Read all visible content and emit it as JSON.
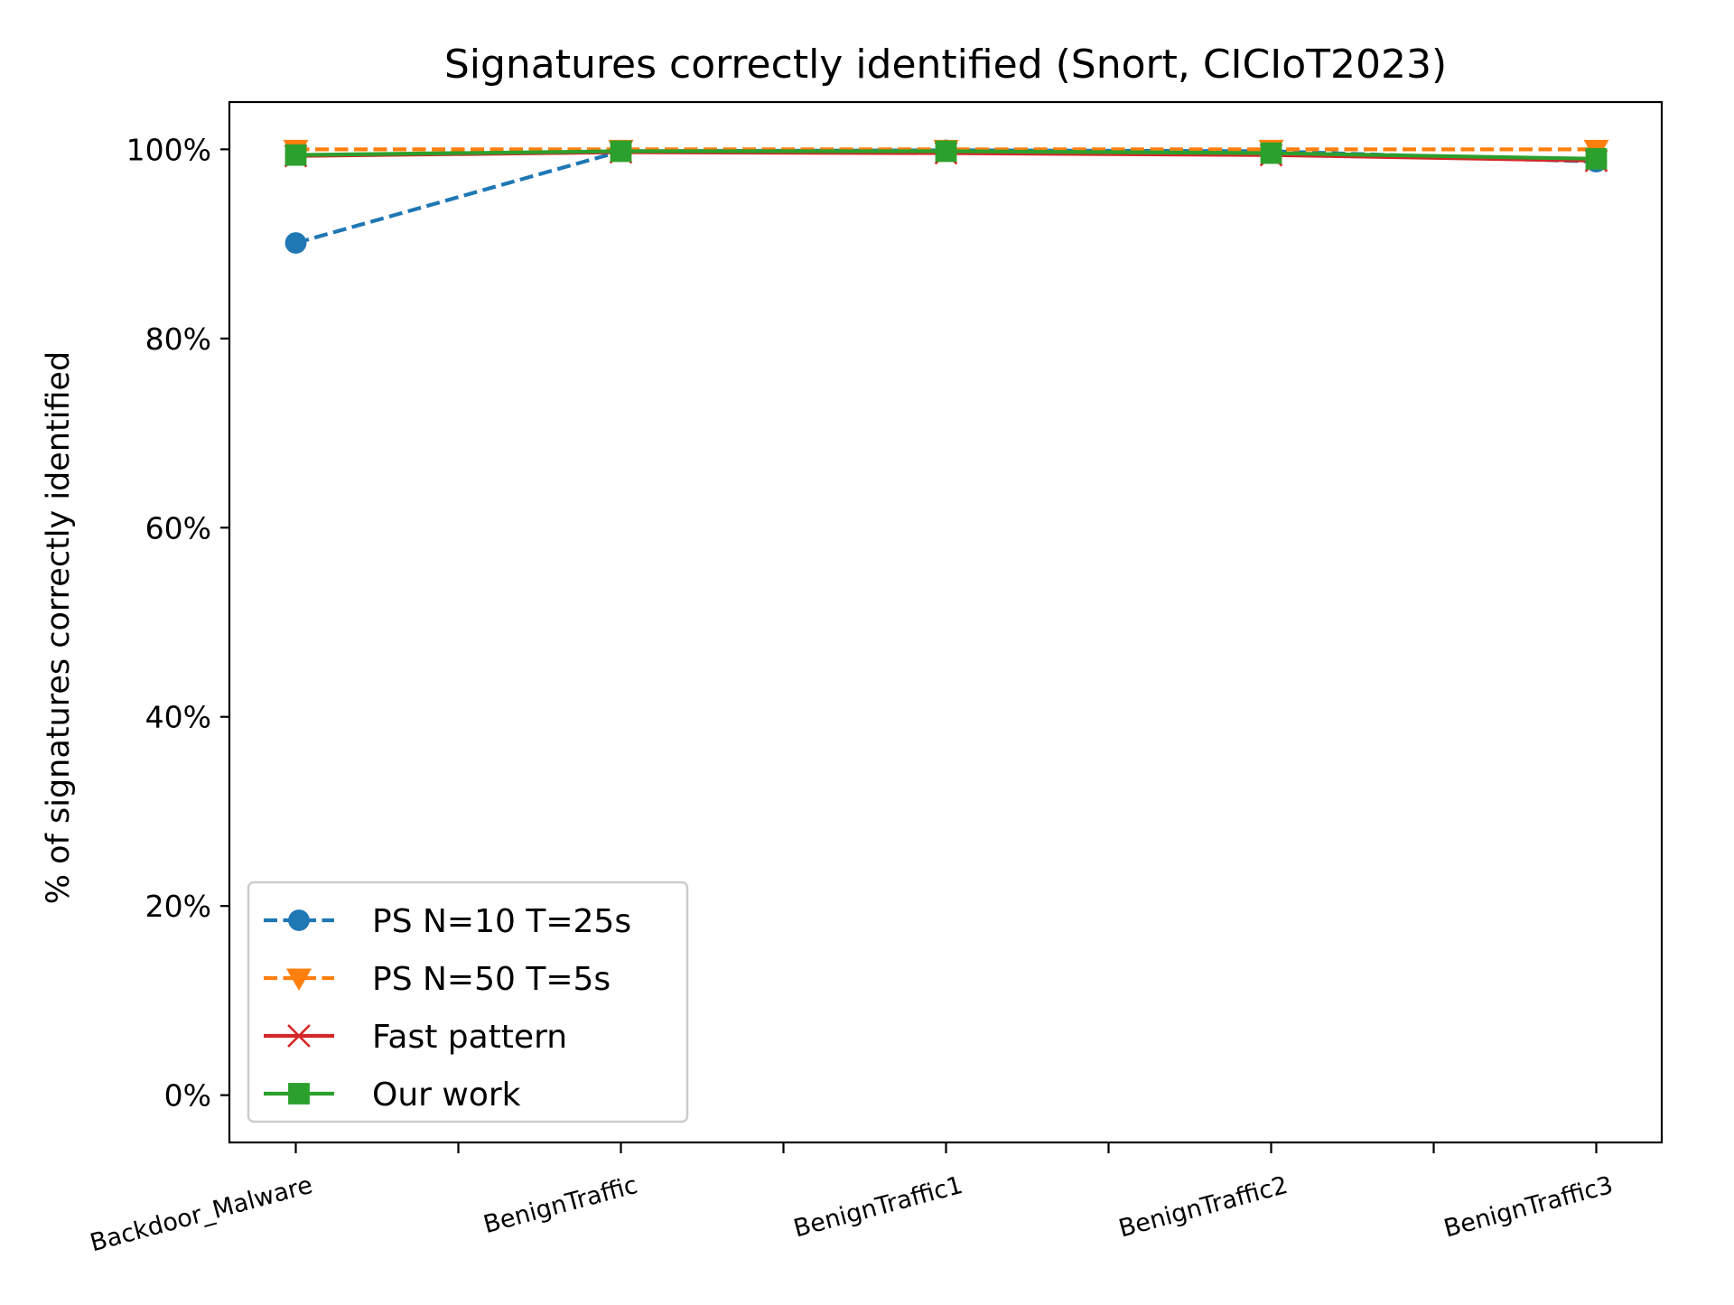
{
  "chart_data": {
    "type": "line",
    "title": "Signatures correctly identified (Snort, CICIoT2023)",
    "xlabel": "",
    "ylabel": "% of signatures correctly identified",
    "categories": [
      "Backdoor_Malware",
      "BenignTraffic",
      "BenignTraffic1",
      "BenignTraffic2",
      "BenignTraffic3"
    ],
    "ylim": [
      -5,
      105
    ],
    "yticks": [
      0,
      20,
      40,
      60,
      80,
      100
    ],
    "ytick_labels": [
      "0%",
      "20%",
      "40%",
      "60%",
      "80%",
      "100%"
    ],
    "grid": false,
    "legend_position": "lower-left",
    "series": [
      {
        "name": "PS N=10 T=25s",
        "values": [
          90.1,
          99.8,
          99.9,
          99.8,
          98.7
        ],
        "color": "#1f77b4",
        "line_style": "dashed",
        "marker": "circle"
      },
      {
        "name": "PS N=50 T=5s",
        "values": [
          100,
          100,
          100,
          100,
          100
        ],
        "color": "#ff7f0e",
        "line_style": "dashed",
        "marker": "triangle-down"
      },
      {
        "name": "Fast pattern",
        "values": [
          99.3,
          99.7,
          99.6,
          99.4,
          98.8
        ],
        "color": "#d62728",
        "line_style": "solid",
        "marker": "x"
      },
      {
        "name": "Our work",
        "values": [
          99.4,
          99.8,
          99.8,
          99.6,
          99.0
        ],
        "color": "#2ca02c",
        "line_style": "solid",
        "marker": "square"
      }
    ]
  }
}
